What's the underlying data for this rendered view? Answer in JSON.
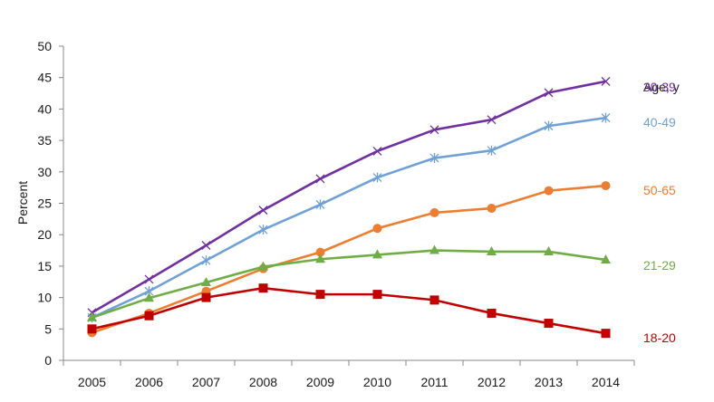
{
  "chart_data": {
    "type": "line",
    "ylabel": "Percent",
    "ylim": [
      0,
      50
    ],
    "yticks": [
      0,
      5,
      10,
      15,
      20,
      25,
      30,
      35,
      40,
      45,
      50
    ],
    "categories": [
      "2005",
      "2006",
      "2007",
      "2008",
      "2009",
      "2010",
      "2011",
      "2012",
      "2013",
      "2014"
    ],
    "grid": false,
    "legend_title": "Age, y",
    "legend_placement": "right",
    "series": [
      {
        "name": "30-39",
        "color": "#7030A0",
        "marker": "x",
        "values": [
          7.6,
          12.9,
          18.3,
          23.9,
          28.9,
          33.3,
          36.7,
          38.3,
          42.6,
          44.4
        ]
      },
      {
        "name": "40-49",
        "color": "#6FA1D7",
        "marker": "asterisk",
        "values": [
          6.8,
          11.0,
          15.9,
          20.8,
          24.8,
          29.1,
          32.2,
          33.4,
          37.3,
          38.6
        ]
      },
      {
        "name": "50-65",
        "color": "#ED7D31",
        "marker": "circle",
        "values": [
          4.4,
          7.5,
          11.0,
          14.6,
          17.2,
          21.0,
          23.5,
          24.2,
          27.0,
          27.8
        ]
      },
      {
        "name": "21-29",
        "color": "#70AD47",
        "marker": "triangle",
        "values": [
          6.8,
          9.9,
          12.4,
          14.9,
          16.1,
          16.8,
          17.5,
          17.3,
          17.3,
          16.0
        ]
      },
      {
        "name": "18-20",
        "color": "#C00000",
        "marker": "square",
        "values": [
          5.0,
          7.1,
          10.0,
          11.5,
          10.5,
          10.5,
          9.6,
          7.5,
          5.9,
          4.3
        ]
      }
    ]
  }
}
